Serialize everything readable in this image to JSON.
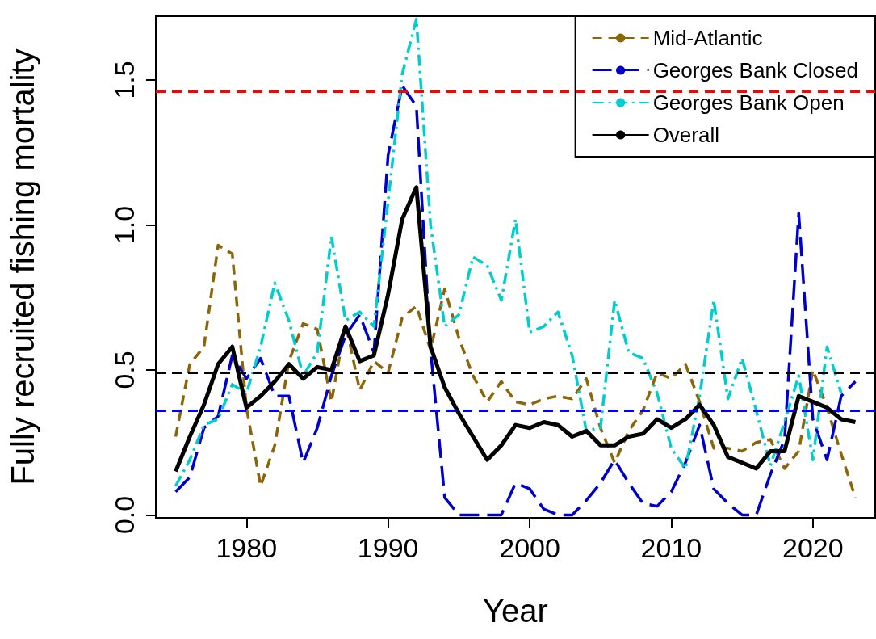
{
  "chart_data": {
    "type": "line",
    "xlabel": "Year",
    "ylabel": "Fully recruited fishing mortality",
    "x": [
      1975,
      1976,
      1977,
      1978,
      1979,
      1980,
      1981,
      1982,
      1983,
      1984,
      1985,
      1986,
      1987,
      1988,
      1989,
      1990,
      1991,
      1992,
      1993,
      1994,
      1995,
      1996,
      1997,
      1998,
      1999,
      2000,
      2001,
      2002,
      2003,
      2004,
      2005,
      2006,
      2007,
      2008,
      2009,
      2010,
      2011,
      2012,
      2013,
      2014,
      2015,
      2016,
      2017,
      2018,
      2019,
      2020,
      2021,
      2022,
      2023
    ],
    "series": [
      {
        "name": "Mid-Atlantic",
        "color": "#8b6508",
        "line_style": "dashed",
        "values": [
          0.27,
          0.52,
          0.58,
          0.93,
          0.9,
          0.37,
          0.1,
          0.24,
          0.53,
          0.66,
          0.64,
          0.39,
          0.66,
          0.43,
          0.53,
          0.49,
          0.68,
          0.72,
          0.57,
          0.78,
          0.61,
          0.48,
          0.39,
          0.46,
          0.39,
          0.38,
          0.4,
          0.41,
          0.4,
          0.47,
          0.3,
          0.18,
          0.29,
          0.36,
          0.49,
          0.47,
          0.52,
          0.39,
          0.23,
          0.23,
          0.22,
          0.25,
          0.26,
          0.16,
          0.22,
          0.5,
          0.37,
          0.21,
          0.06
        ]
      },
      {
        "name": "Georges Bank Closed",
        "color": "#0000cd",
        "line_style": "longdash",
        "values": [
          0.08,
          0.13,
          0.3,
          0.34,
          0.55,
          0.47,
          0.54,
          0.41,
          0.41,
          0.18,
          0.3,
          0.48,
          0.62,
          0.69,
          0.56,
          1.24,
          1.48,
          1.41,
          0.57,
          0.06,
          0,
          0,
          0,
          0,
          0.11,
          0.09,
          0.02,
          0,
          0,
          0.05,
          0.11,
          0.19,
          0.11,
          0.04,
          0.03,
          0.08,
          0.18,
          0.31,
          0.09,
          0.04,
          0,
          0,
          0.14,
          0.26,
          1.04,
          0.33,
          0.19,
          0.41,
          0.46
        ]
      },
      {
        "name": "Georges Bank Open",
        "color": "#00cdcd",
        "line_style": "dashdot",
        "values": [
          0.1,
          0.19,
          0.31,
          0.33,
          0.45,
          0.42,
          0.58,
          0.8,
          0.67,
          0.48,
          0.56,
          0.96,
          0.67,
          0.7,
          0.65,
          1.08,
          1.52,
          1.71,
          1.0,
          0.65,
          0.69,
          0.89,
          0.86,
          0.74,
          1.02,
          0.63,
          0.65,
          0.7,
          0.55,
          0.29,
          0.3,
          0.74,
          0.56,
          0.54,
          0.42,
          0.23,
          0.16,
          0.41,
          0.74,
          0.4,
          0.54,
          0.36,
          0.17,
          0.32,
          0.48,
          0.19,
          0.58,
          0.42,
          null
        ]
      },
      {
        "name": "Overall",
        "color": "#000000",
        "line_style": "solid",
        "values": [
          0.15,
          0.27,
          0.38,
          0.52,
          0.58,
          0.37,
          0.41,
          0.46,
          0.52,
          0.47,
          0.51,
          0.5,
          0.65,
          0.53,
          0.55,
          0.76,
          1.02,
          1.13,
          0.58,
          0.44,
          0.35,
          0.27,
          0.19,
          0.24,
          0.31,
          0.3,
          0.32,
          0.31,
          0.27,
          0.29,
          0.24,
          0.24,
          0.27,
          0.28,
          0.33,
          0.3,
          0.33,
          0.38,
          0.31,
          0.2,
          0.18,
          0.16,
          0.22,
          0.22,
          0.41,
          0.39,
          0.37,
          0.33,
          0.32
        ]
      }
    ],
    "ref_lines": [
      {
        "axis": "y",
        "value": 1.46,
        "color": "#ff0000",
        "line_style": "dashed"
      },
      {
        "axis": "y",
        "value": 0.49,
        "color": "#000000",
        "line_style": "dashed"
      },
      {
        "axis": "y",
        "value": 0.36,
        "color": "#0000ff",
        "line_style": "dashed"
      }
    ],
    "xlim": [
      1973.6,
      2024.4
    ],
    "xticks": [
      1980,
      1990,
      2000,
      2010,
      2020
    ],
    "ylim": [
      -0.01,
      1.72
    ],
    "yticks": [
      {
        "value": 0,
        "label": "0.0"
      },
      {
        "value": 0.5,
        "label": "0.5"
      },
      {
        "value": 1,
        "label": "1.0"
      },
      {
        "value": 1.5,
        "label": "1.5"
      }
    ],
    "grid": false,
    "legend": "top right"
  }
}
